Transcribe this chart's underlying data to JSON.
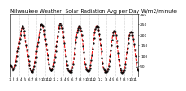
{
  "title": "Milwaukee Weather  Solar Radiation Avg per Day W/m2/minute",
  "title_fontsize": 4.2,
  "line_color": "red",
  "line_style": "--",
  "line_width": 0.7,
  "marker": ".",
  "marker_color": "black",
  "marker_size": 1.2,
  "background_color": "#ffffff",
  "grid_color": "#aaaaaa",
  "grid_style": ":",
  "ylim": [
    0,
    300
  ],
  "yticks": [
    50,
    100,
    150,
    200,
    250,
    300
  ],
  "ytick_labels": [
    "50",
    "100",
    "150",
    "200",
    "250",
    "300"
  ],
  "ytick_fontsize": 3.2,
  "xtick_fontsize": 2.8,
  "values": [
    55,
    50,
    45,
    35,
    30,
    35,
    45,
    55,
    75,
    100,
    120,
    140,
    160,
    180,
    200,
    220,
    235,
    240,
    235,
    220,
    200,
    175,
    150,
    130,
    100,
    75,
    55,
    40,
    30,
    25,
    20,
    25,
    35,
    50,
    70,
    95,
    120,
    145,
    165,
    190,
    210,
    230,
    245,
    250,
    248,
    240,
    225,
    205,
    180,
    155,
    130,
    105,
    80,
    60,
    45,
    35,
    30,
    30,
    35,
    50,
    70,
    95,
    120,
    145,
    170,
    195,
    215,
    235,
    248,
    255,
    248,
    235,
    215,
    190,
    160,
    130,
    100,
    75,
    55,
    40,
    30,
    25,
    20,
    22,
    30,
    45,
    60,
    85,
    110,
    140,
    165,
    190,
    210,
    225,
    235,
    240,
    235,
    220,
    198,
    172,
    145,
    115,
    88,
    62,
    45,
    35,
    28,
    25,
    28,
    38,
    55,
    78,
    105,
    135,
    162,
    188,
    210,
    228,
    238,
    242,
    238,
    225,
    205,
    180,
    152,
    122,
    92,
    65,
    45,
    35,
    28,
    22,
    20,
    25,
    35,
    50,
    72,
    98,
    125,
    152,
    178,
    198,
    212,
    220,
    215,
    200,
    175,
    145,
    112,
    80,
    55,
    38,
    28,
    22,
    18,
    20,
    28,
    42,
    62,
    88,
    115,
    140,
    162,
    185,
    200,
    210,
    215,
    212,
    200,
    180,
    155,
    128,
    98,
    70,
    48,
    35,
    28
  ],
  "n_xticks": 35,
  "xtick_labels": [
    "1",
    "2",
    "3",
    "4",
    "5",
    "6",
    "7",
    "8",
    "9",
    "10",
    "11",
    "12",
    "1",
    "2",
    "3",
    "4",
    "5",
    "6",
    "7",
    "8",
    "9",
    "10",
    "11",
    "12",
    "1",
    "2",
    "3",
    "4",
    "5",
    "6",
    "7",
    "8",
    "9",
    "10",
    "11"
  ],
  "vgrid_positions": [
    12,
    24,
    36,
    48,
    60,
    72,
    84,
    96,
    108,
    120,
    132,
    144,
    156,
    168
  ]
}
